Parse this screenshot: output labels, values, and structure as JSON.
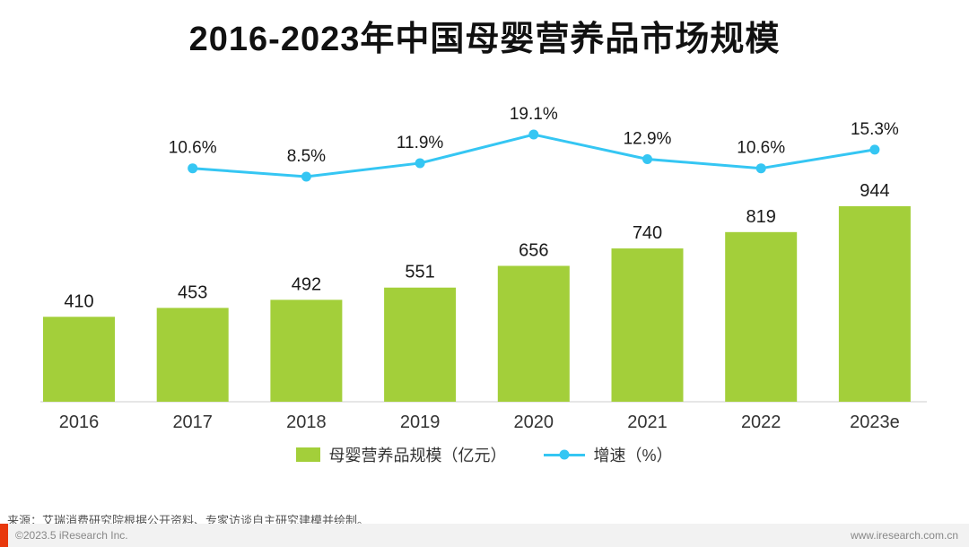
{
  "title": "2016-2023年中国母婴营养品市场规模",
  "chart_data": {
    "type": "bar+line",
    "title": "2016-2023年中国母婴营养品市场规模",
    "categories": [
      "2016",
      "2017",
      "2018",
      "2019",
      "2020",
      "2021",
      "2022",
      "2023e"
    ],
    "series": [
      {
        "name": "母婴营养品规模（亿元）",
        "type": "bar",
        "color": "#a3cf3a",
        "values": [
          410,
          453,
          492,
          551,
          656,
          740,
          819,
          944
        ],
        "labels": [
          "410",
          "453",
          "492",
          "551",
          "656",
          "740",
          "819",
          "944"
        ]
      },
      {
        "name": "增速（%）",
        "type": "line",
        "color": "#35c6f3",
        "x_start_index": 1,
        "values": [
          10.6,
          8.5,
          11.9,
          19.1,
          12.9,
          10.6,
          15.3
        ],
        "labels": [
          "10.6%",
          "8.5%",
          "11.9%",
          "19.1%",
          "12.9%",
          "10.6%",
          "15.3%"
        ]
      }
    ],
    "xlabel": "",
    "ylabel": "",
    "grid": false,
    "legend_position": "bottom",
    "value_axis_visible": false
  },
  "legend": {
    "bar_label": "母婴营养品规模（亿元）",
    "line_label": "增速（%）"
  },
  "source_note": "来源：艾瑞消费研究院根据公开资料、专家访谈自主研究建模并绘制。",
  "footer": {
    "copyright": "©2023.5 iResearch Inc.",
    "website": "www.iresearch.com.cn"
  },
  "colors": {
    "bar": "#a3cf3a",
    "line": "#35c6f3",
    "axis": "#cccccc",
    "footer_bg": "#f2f2f2",
    "brand_red": "#e8380d"
  }
}
